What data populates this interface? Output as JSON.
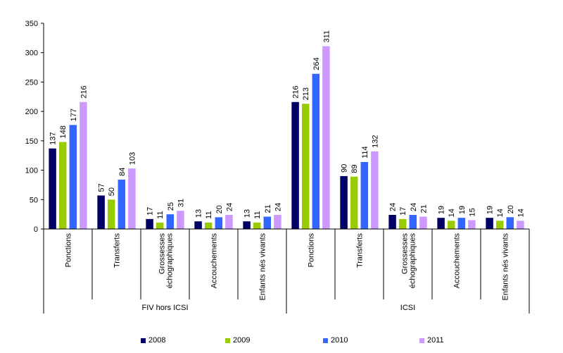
{
  "chart_data": {
    "type": "bar",
    "ylim": [
      0,
      350
    ],
    "yticks": [
      "0",
      "50",
      "100",
      "150",
      "200",
      "250",
      "300",
      "350"
    ],
    "groups": [
      {
        "label": "FIV hors ICSI",
        "categories": [
          "Ponctions",
          "Transferts",
          "Grossesses échographiques",
          "Accouchements",
          "Enfants nés vivants"
        ]
      },
      {
        "label": "ICSI",
        "categories": [
          "Ponctions",
          "Transferts",
          "Grossesses échographiques",
          "Accouchements",
          "Enfants nés vivants"
        ]
      }
    ],
    "series": [
      {
        "name": "2008",
        "color": "#000066",
        "values": [
          137,
          57,
          17,
          13,
          13,
          216,
          90,
          24,
          19,
          19
        ]
      },
      {
        "name": "2009",
        "color": "#99CC00",
        "values": [
          148,
          50,
          11,
          11,
          11,
          213,
          89,
          17,
          14,
          14
        ]
      },
      {
        "name": "2010",
        "color": "#3366FF",
        "values": [
          177,
          84,
          25,
          20,
          21,
          264,
          114,
          24,
          19,
          20
        ]
      },
      {
        "name": "2011",
        "color": "#CC99FF",
        "values": [
          216,
          103,
          31,
          24,
          24,
          311,
          132,
          21,
          15,
          14
        ]
      }
    ]
  }
}
